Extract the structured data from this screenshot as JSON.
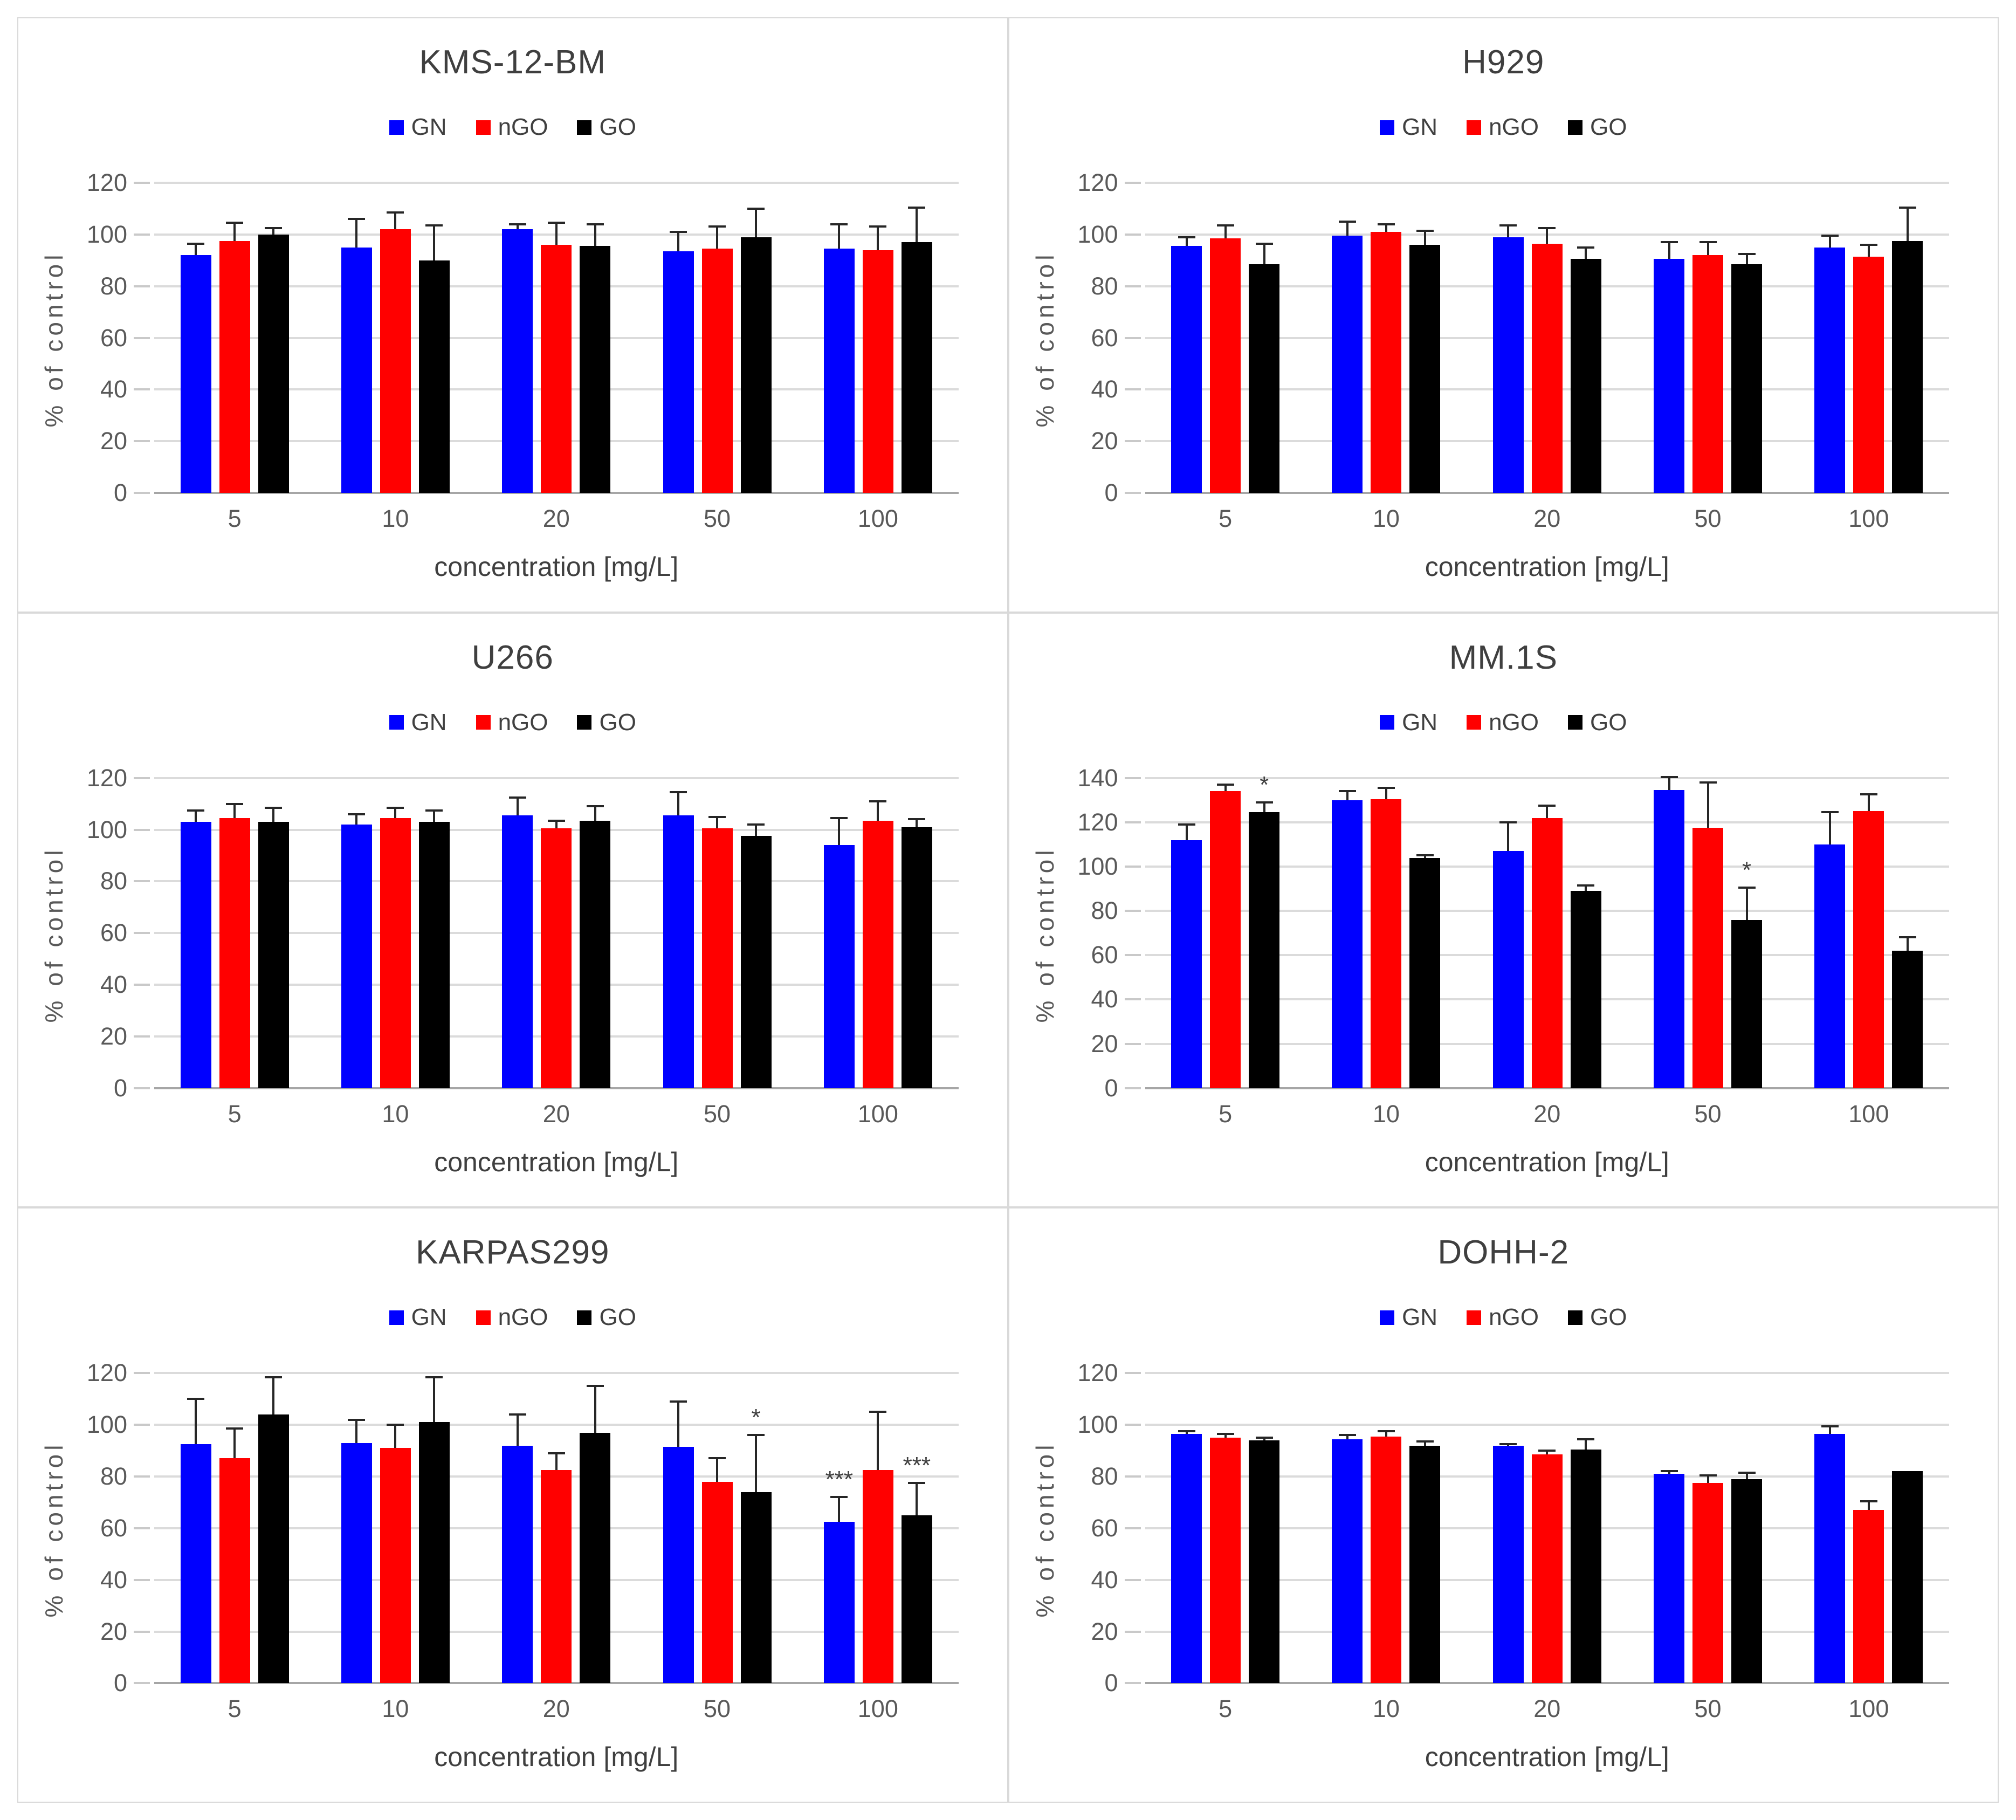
{
  "colors": {
    "GN": "#0000ff",
    "nGO": "#ff0000",
    "GO": "#000000",
    "grid": "#dbdbdb",
    "axis_line": "#a6a6a6",
    "tick_text": "#595959",
    "title_text": "#3f3f3f",
    "error_bar": "#262626"
  },
  "axis": {
    "ylabel": "% of control",
    "xlabel": "concentration [mg/L]"
  },
  "legend": [
    {
      "label": "GN",
      "color": "#0000ff"
    },
    {
      "label": "nGO",
      "color": "#ff0000"
    },
    {
      "label": "GO",
      "color": "#000000"
    }
  ],
  "chart_data": [
    {
      "type": "bar",
      "title": "KMS-12-BM",
      "xlabel": "concentration [mg/L]",
      "ylabel": "% of control",
      "categories": [
        "5",
        "10",
        "20",
        "50",
        "100"
      ],
      "ylim": [
        0,
        120
      ],
      "ytick_step": 20,
      "grid": true,
      "legend_position": "top",
      "error_bars": "plus",
      "series": [
        {
          "name": "GN",
          "color": "#0000ff",
          "values": [
            92,
            95,
            102,
            93.5,
            94.5
          ],
          "errors": [
            4.5,
            11,
            2,
            7.5,
            9.5
          ]
        },
        {
          "name": "nGO",
          "color": "#ff0000",
          "values": [
            97.5,
            102,
            96,
            94.5,
            94
          ],
          "errors": [
            7,
            6.5,
            8.5,
            8.5,
            9
          ]
        },
        {
          "name": "GO",
          "color": "#000000",
          "values": [
            100,
            90,
            95.5,
            99,
            97
          ],
          "errors": [
            2.5,
            13.5,
            8.5,
            11,
            13.5
          ]
        }
      ],
      "annotations": []
    },
    {
      "type": "bar",
      "title": "H929",
      "xlabel": "concentration [mg/L]",
      "ylabel": "% of control",
      "categories": [
        "5",
        "10",
        "20",
        "50",
        "100"
      ],
      "ylim": [
        0,
        120
      ],
      "ytick_step": 20,
      "grid": true,
      "legend_position": "top",
      "error_bars": "plus",
      "series": [
        {
          "name": "GN",
          "color": "#0000ff",
          "values": [
            95.5,
            99.5,
            99,
            90.5,
            95
          ],
          "errors": [
            3.5,
            5.5,
            4.5,
            6.5,
            4.5
          ]
        },
        {
          "name": "nGO",
          "color": "#ff0000",
          "values": [
            98.5,
            101,
            96.5,
            92,
            91.5
          ],
          "errors": [
            5,
            3,
            6,
            5,
            4.5
          ]
        },
        {
          "name": "GO",
          "color": "#000000",
          "values": [
            88.5,
            96,
            90.5,
            88.5,
            97.5
          ],
          "errors": [
            8,
            5.5,
            4.5,
            4,
            13
          ]
        }
      ],
      "annotations": []
    },
    {
      "type": "bar",
      "title": "U266",
      "xlabel": "concentration [mg/L]",
      "ylabel": "% of control",
      "categories": [
        "5",
        "10",
        "20",
        "50",
        "100"
      ],
      "ylim": [
        0,
        120
      ],
      "ytick_step": 20,
      "grid": true,
      "legend_position": "top",
      "error_bars": "plus",
      "series": [
        {
          "name": "GN",
          "color": "#0000ff",
          "values": [
            103,
            102,
            105.5,
            105.5,
            94
          ],
          "errors": [
            4.5,
            4,
            7,
            9,
            10.5
          ]
        },
        {
          "name": "nGO",
          "color": "#ff0000",
          "values": [
            104.5,
            104.5,
            100.5,
            100.5,
            103.5
          ],
          "errors": [
            5.5,
            4,
            3,
            4.5,
            7.5
          ]
        },
        {
          "name": "GO",
          "color": "#000000",
          "values": [
            103,
            103,
            103.5,
            97.5,
            101
          ],
          "errors": [
            5.5,
            4.5,
            5.5,
            4.5,
            3
          ]
        }
      ],
      "annotations": []
    },
    {
      "type": "bar",
      "title": "MM.1S",
      "xlabel": "concentration [mg/L]",
      "ylabel": "% of control",
      "categories": [
        "5",
        "10",
        "20",
        "50",
        "100"
      ],
      "ylim": [
        0,
        140
      ],
      "ytick_step": 20,
      "grid": true,
      "legend_position": "top",
      "error_bars": "plus",
      "series": [
        {
          "name": "GN",
          "color": "#0000ff",
          "values": [
            112,
            130,
            107,
            134.5,
            110
          ],
          "errors": [
            7,
            4,
            13,
            6,
            14.5
          ]
        },
        {
          "name": "nGO",
          "color": "#ff0000",
          "values": [
            134,
            130.5,
            122,
            117.5,
            125
          ],
          "errors": [
            3,
            5,
            5.5,
            20.5,
            7.5
          ]
        },
        {
          "name": "GO",
          "color": "#000000",
          "values": [
            124.5,
            104,
            89,
            76,
            62
          ],
          "errors": [
            4.5,
            1,
            2.5,
            14.5,
            6
          ]
        }
      ],
      "annotations": [
        {
          "series": "GO",
          "category": "5",
          "text": "*"
        },
        {
          "series": "GO",
          "category": "50",
          "text": "*"
        }
      ]
    },
    {
      "type": "bar",
      "title": "KARPAS299",
      "xlabel": "concentration [mg/L]",
      "ylabel": "% of control",
      "categories": [
        "5",
        "10",
        "20",
        "50",
        "100"
      ],
      "ylim": [
        0,
        120
      ],
      "ytick_step": 20,
      "grid": true,
      "legend_position": "top",
      "error_bars": "plus",
      "series": [
        {
          "name": "GN",
          "color": "#0000ff",
          "values": [
            92.5,
            93,
            92,
            91.5,
            62.5
          ],
          "errors": [
            17.5,
            9,
            12,
            17.5,
            9.5
          ]
        },
        {
          "name": "nGO",
          "color": "#ff0000",
          "values": [
            87,
            91,
            82.5,
            78,
            82.5
          ],
          "errors": [
            11.5,
            9,
            6.5,
            9,
            22.5
          ]
        },
        {
          "name": "GO",
          "color": "#000000",
          "values": [
            104,
            101,
            97,
            74,
            65
          ],
          "errors": [
            14.5,
            17.5,
            18,
            22,
            12.5
          ]
        }
      ],
      "annotations": [
        {
          "series": "GO",
          "category": "50",
          "text": "*"
        },
        {
          "series": "GN",
          "category": "100",
          "text": "***"
        },
        {
          "series": "GO",
          "category": "100",
          "text": "***"
        }
      ]
    },
    {
      "type": "bar",
      "title": "DOHH-2",
      "xlabel": "concentration [mg/L]",
      "ylabel": "% of control",
      "categories": [
        "5",
        "10",
        "20",
        "50",
        "100"
      ],
      "ylim": [
        0,
        120
      ],
      "ytick_step": 20,
      "grid": true,
      "legend_position": "top",
      "error_bars": "plus",
      "series": [
        {
          "name": "GN",
          "color": "#0000ff",
          "values": [
            96.5,
            94.5,
            92,
            81,
            96.5
          ],
          "errors": [
            1,
            1.5,
            0.5,
            1,
            3
          ]
        },
        {
          "name": "nGO",
          "color": "#ff0000",
          "values": [
            95,
            95.5,
            88.5,
            77.5,
            67
          ],
          "errors": [
            1.5,
            2,
            1.5,
            3,
            3.5
          ]
        },
        {
          "name": "GO",
          "color": "#000000",
          "values": [
            94,
            92,
            90.5,
            79,
            82
          ],
          "errors": [
            1,
            1.5,
            4,
            2.5,
            0
          ]
        }
      ],
      "annotations": []
    }
  ]
}
